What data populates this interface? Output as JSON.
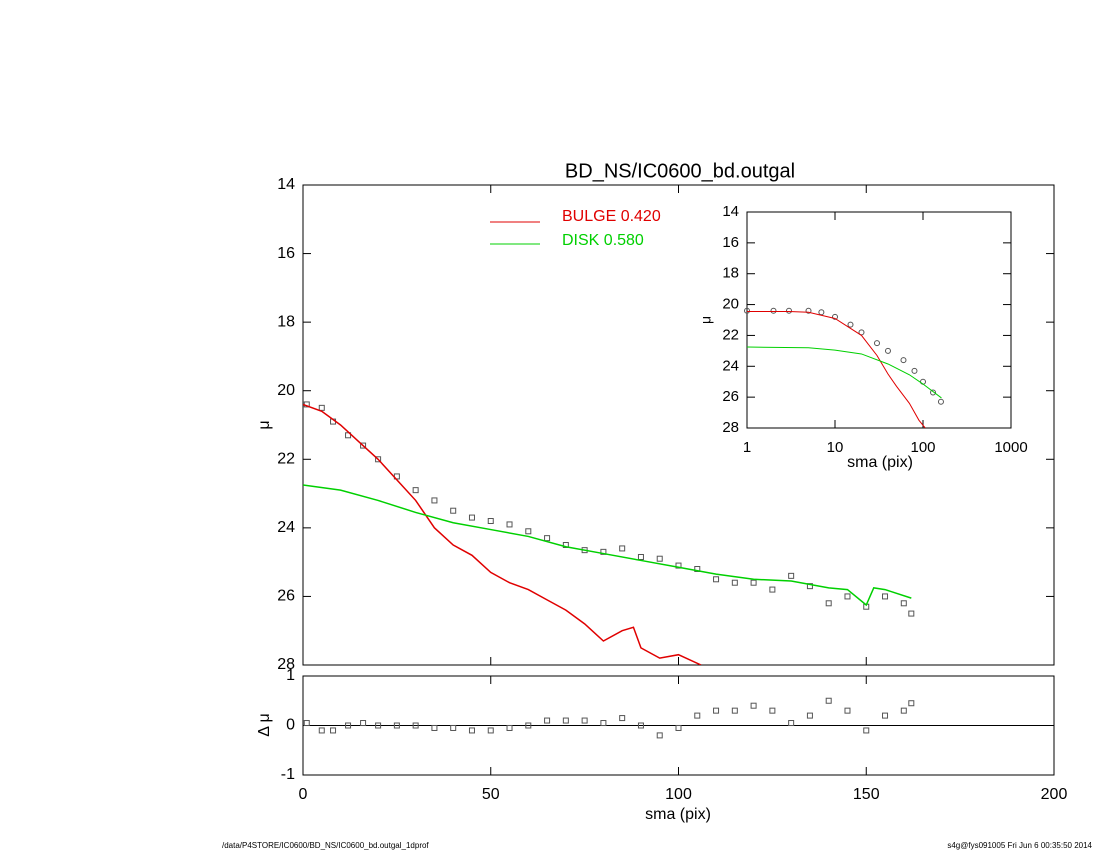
{
  "chart_data": [
    {
      "type": "line",
      "title": "BD_NS/IC0600_bd.outgal",
      "ylabel": "μ",
      "xlim": [
        0,
        200
      ],
      "xticks": [
        0,
        50,
        100,
        150,
        200
      ],
      "show_xtick_labels": false,
      "ylim": [
        14,
        28
      ],
      "yreverse": true,
      "yticks": [
        14,
        16,
        18,
        20,
        22,
        24,
        26,
        28
      ],
      "series": [
        {
          "marker": "square",
          "color": "#555555",
          "x": [
            1,
            5,
            8,
            12,
            16,
            20,
            25,
            30,
            35,
            40,
            45,
            50,
            55,
            60,
            65,
            70,
            75,
            80,
            85,
            90,
            95,
            100,
            105,
            110,
            115,
            120,
            125,
            130,
            135,
            140,
            145,
            150,
            155,
            160,
            162
          ],
          "values": [
            20.4,
            20.5,
            20.9,
            21.3,
            21.6,
            22.0,
            22.5,
            22.9,
            23.2,
            23.5,
            23.7,
            23.8,
            23.9,
            24.1,
            24.3,
            24.5,
            24.65,
            24.7,
            24.6,
            24.85,
            24.9,
            25.1,
            25.2,
            25.5,
            25.6,
            25.6,
            25.8,
            25.4,
            25.7,
            26.2,
            26.0,
            26.3,
            26.0,
            26.2,
            26.5
          ]
        },
        {
          "name": "BULGE  0.420",
          "color": "#e00000",
          "x": [
            0,
            5,
            10,
            15,
            20,
            25,
            30,
            35,
            40,
            45,
            50,
            55,
            60,
            65,
            70,
            75,
            80,
            85,
            88,
            90,
            95,
            100,
            106
          ],
          "values": [
            20.4,
            20.6,
            21.0,
            21.5,
            22.0,
            22.6,
            23.2,
            24.0,
            24.5,
            24.8,
            25.3,
            25.6,
            25.8,
            26.1,
            26.4,
            26.8,
            27.3,
            27.0,
            26.9,
            27.5,
            27.8,
            27.7,
            28.0
          ]
        },
        {
          "name": "DISK  0.580",
          "color": "#00d000",
          "x": [
            0,
            10,
            20,
            30,
            40,
            50,
            60,
            70,
            80,
            90,
            100,
            110,
            120,
            130,
            140,
            145,
            150,
            152,
            155,
            162
          ],
          "values": [
            22.75,
            22.9,
            23.2,
            23.55,
            23.85,
            24.05,
            24.25,
            24.55,
            24.75,
            24.95,
            25.15,
            25.35,
            25.5,
            25.55,
            25.75,
            25.8,
            26.25,
            25.75,
            25.8,
            26.05
          ]
        }
      ]
    },
    {
      "type": "scatter",
      "ylabel": "Δ μ",
      "xlabel": "sma (pix)",
      "xlim": [
        0,
        200
      ],
      "xticks": [
        0,
        50,
        100,
        150,
        200
      ],
      "show_xtick_labels": true,
      "ylim": [
        -1,
        1
      ],
      "yticks": [
        -1,
        0,
        1
      ],
      "hline": 0,
      "color": "#555555",
      "x": [
        1,
        5,
        8,
        12,
        16,
        20,
        25,
        30,
        35,
        40,
        45,
        50,
        55,
        60,
        65,
        70,
        75,
        80,
        85,
        90,
        95,
        100,
        105,
        110,
        115,
        120,
        125,
        130,
        135,
        140,
        145,
        150,
        155,
        160,
        162
      ],
      "values": [
        0.05,
        -0.1,
        -0.1,
        0.0,
        0.05,
        0.0,
        0.0,
        0.0,
        -0.05,
        -0.05,
        -0.1,
        -0.1,
        -0.05,
        0.0,
        0.1,
        0.1,
        0.1,
        0.05,
        0.15,
        0.0,
        -0.2,
        -0.05,
        0.2,
        0.3,
        0.3,
        0.4,
        0.3,
        0.05,
        0.2,
        0.5,
        0.3,
        -0.1,
        0.2,
        0.3,
        0.45
      ]
    },
    {
      "type": "line",
      "ylabel": "μ",
      "xlabel": "sma (pix)",
      "xlog": true,
      "xlim": [
        1,
        1000
      ],
      "xticks": [
        1,
        10,
        100,
        1000
      ],
      "show_xtick_labels": true,
      "ylim": [
        14,
        28
      ],
      "yreverse": true,
      "yticks": [
        14,
        16,
        18,
        20,
        22,
        24,
        26,
        28
      ],
      "series": [
        {
          "marker": "circle",
          "color": "#555555",
          "x": [
            1,
            2,
            3,
            5,
            7,
            10,
            15,
            20,
            30,
            40,
            60,
            80,
            100,
            130,
            160
          ],
          "values": [
            20.4,
            20.4,
            20.4,
            20.4,
            20.5,
            20.8,
            21.3,
            21.8,
            22.5,
            23.0,
            23.6,
            24.3,
            25.0,
            25.7,
            26.3
          ]
        },
        {
          "color": "#e00000",
          "x": [
            1,
            3,
            5,
            10,
            20,
            30,
            40,
            50,
            70,
            90,
            106
          ],
          "values": [
            20.45,
            20.45,
            20.5,
            20.9,
            22.0,
            23.3,
            24.5,
            25.3,
            26.4,
            27.5,
            28.0
          ]
        },
        {
          "color": "#00d000",
          "x": [
            1,
            5,
            10,
            20,
            40,
            70,
            100,
            162
          ],
          "values": [
            22.75,
            22.8,
            22.95,
            23.2,
            23.85,
            24.55,
            25.15,
            26.05
          ]
        }
      ]
    }
  ],
  "footer": {
    "left": "/data/P4STORE/IC0600/BD_NS/IC0600_bd.outgal_1dprof",
    "right": "s4g@fys091005  Fri Jun  6 00:35:50 2014"
  }
}
